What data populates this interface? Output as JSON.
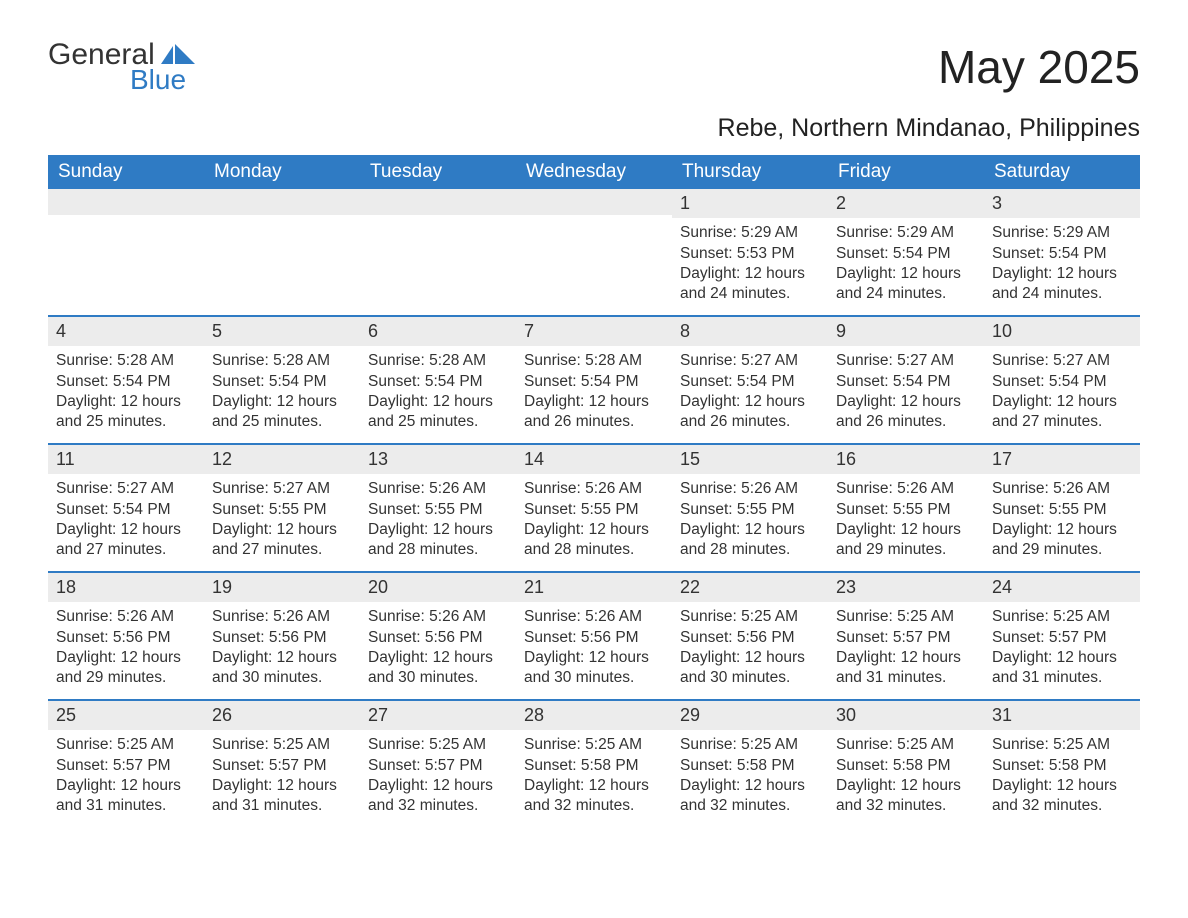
{
  "logo": {
    "word1": "General",
    "word2": "Blue"
  },
  "title": "May 2025",
  "subtitle": "Rebe, Northern Mindanao, Philippines",
  "header_bg": "#2f7bc4",
  "header_text": "#ffffff",
  "divider_color": "#2f7bc4",
  "daynum_bg": "#ececec",
  "weekdays": [
    "Sunday",
    "Monday",
    "Tuesday",
    "Wednesday",
    "Thursday",
    "Friday",
    "Saturday"
  ],
  "weeks": [
    [
      null,
      null,
      null,
      null,
      {
        "d": "1",
        "sr": "5:29 AM",
        "ss": "5:53 PM",
        "dl": "12 hours and 24 minutes."
      },
      {
        "d": "2",
        "sr": "5:29 AM",
        "ss": "5:54 PM",
        "dl": "12 hours and 24 minutes."
      },
      {
        "d": "3",
        "sr": "5:29 AM",
        "ss": "5:54 PM",
        "dl": "12 hours and 24 minutes."
      }
    ],
    [
      {
        "d": "4",
        "sr": "5:28 AM",
        "ss": "5:54 PM",
        "dl": "12 hours and 25 minutes."
      },
      {
        "d": "5",
        "sr": "5:28 AM",
        "ss": "5:54 PM",
        "dl": "12 hours and 25 minutes."
      },
      {
        "d": "6",
        "sr": "5:28 AM",
        "ss": "5:54 PM",
        "dl": "12 hours and 25 minutes."
      },
      {
        "d": "7",
        "sr": "5:28 AM",
        "ss": "5:54 PM",
        "dl": "12 hours and 26 minutes."
      },
      {
        "d": "8",
        "sr": "5:27 AM",
        "ss": "5:54 PM",
        "dl": "12 hours and 26 minutes."
      },
      {
        "d": "9",
        "sr": "5:27 AM",
        "ss": "5:54 PM",
        "dl": "12 hours and 26 minutes."
      },
      {
        "d": "10",
        "sr": "5:27 AM",
        "ss": "5:54 PM",
        "dl": "12 hours and 27 minutes."
      }
    ],
    [
      {
        "d": "11",
        "sr": "5:27 AM",
        "ss": "5:54 PM",
        "dl": "12 hours and 27 minutes."
      },
      {
        "d": "12",
        "sr": "5:27 AM",
        "ss": "5:55 PM",
        "dl": "12 hours and 27 minutes."
      },
      {
        "d": "13",
        "sr": "5:26 AM",
        "ss": "5:55 PM",
        "dl": "12 hours and 28 minutes."
      },
      {
        "d": "14",
        "sr": "5:26 AM",
        "ss": "5:55 PM",
        "dl": "12 hours and 28 minutes."
      },
      {
        "d": "15",
        "sr": "5:26 AM",
        "ss": "5:55 PM",
        "dl": "12 hours and 28 minutes."
      },
      {
        "d": "16",
        "sr": "5:26 AM",
        "ss": "5:55 PM",
        "dl": "12 hours and 29 minutes."
      },
      {
        "d": "17",
        "sr": "5:26 AM",
        "ss": "5:55 PM",
        "dl": "12 hours and 29 minutes."
      }
    ],
    [
      {
        "d": "18",
        "sr": "5:26 AM",
        "ss": "5:56 PM",
        "dl": "12 hours and 29 minutes."
      },
      {
        "d": "19",
        "sr": "5:26 AM",
        "ss": "5:56 PM",
        "dl": "12 hours and 30 minutes."
      },
      {
        "d": "20",
        "sr": "5:26 AM",
        "ss": "5:56 PM",
        "dl": "12 hours and 30 minutes."
      },
      {
        "d": "21",
        "sr": "5:26 AM",
        "ss": "5:56 PM",
        "dl": "12 hours and 30 minutes."
      },
      {
        "d": "22",
        "sr": "5:25 AM",
        "ss": "5:56 PM",
        "dl": "12 hours and 30 minutes."
      },
      {
        "d": "23",
        "sr": "5:25 AM",
        "ss": "5:57 PM",
        "dl": "12 hours and 31 minutes."
      },
      {
        "d": "24",
        "sr": "5:25 AM",
        "ss": "5:57 PM",
        "dl": "12 hours and 31 minutes."
      }
    ],
    [
      {
        "d": "25",
        "sr": "5:25 AM",
        "ss": "5:57 PM",
        "dl": "12 hours and 31 minutes."
      },
      {
        "d": "26",
        "sr": "5:25 AM",
        "ss": "5:57 PM",
        "dl": "12 hours and 31 minutes."
      },
      {
        "d": "27",
        "sr": "5:25 AM",
        "ss": "5:57 PM",
        "dl": "12 hours and 32 minutes."
      },
      {
        "d": "28",
        "sr": "5:25 AM",
        "ss": "5:58 PM",
        "dl": "12 hours and 32 minutes."
      },
      {
        "d": "29",
        "sr": "5:25 AM",
        "ss": "5:58 PM",
        "dl": "12 hours and 32 minutes."
      },
      {
        "d": "30",
        "sr": "5:25 AM",
        "ss": "5:58 PM",
        "dl": "12 hours and 32 minutes."
      },
      {
        "d": "31",
        "sr": "5:25 AM",
        "ss": "5:58 PM",
        "dl": "12 hours and 32 minutes."
      }
    ]
  ],
  "labels": {
    "sunrise": "Sunrise: ",
    "sunset": "Sunset: ",
    "daylight": "Daylight: "
  }
}
